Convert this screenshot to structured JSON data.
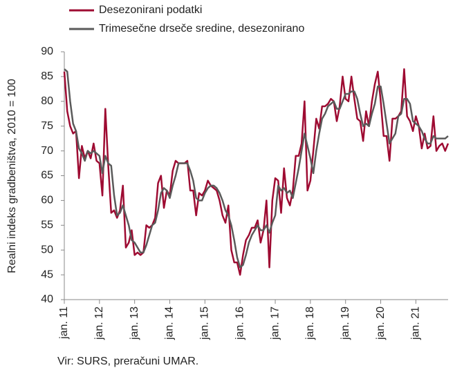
{
  "chart_data": {
    "type": "line",
    "y_label": "Realni indeks gradbeništva, 2010 = 100",
    "source": "Vir: SURS, preračuni UMAR.",
    "categories": [
      "jan. 11",
      null,
      null,
      null,
      null,
      null,
      null,
      null,
      null,
      null,
      null,
      null,
      "jan. 12",
      null,
      null,
      null,
      null,
      null,
      null,
      null,
      null,
      null,
      null,
      null,
      "jan. 13",
      null,
      null,
      null,
      null,
      null,
      null,
      null,
      null,
      null,
      null,
      null,
      "jan. 14",
      null,
      null,
      null,
      null,
      null,
      null,
      null,
      null,
      null,
      null,
      null,
      "jan. 15",
      null,
      null,
      null,
      null,
      null,
      null,
      null,
      null,
      null,
      null,
      null,
      "jan. 16",
      null,
      null,
      null,
      null,
      null,
      null,
      null,
      null,
      null,
      null,
      null,
      "jan. 17",
      null,
      null,
      null,
      null,
      null,
      null,
      null,
      null,
      null,
      null,
      null,
      "jan. 18",
      null,
      null,
      null,
      null,
      null,
      null,
      null,
      null,
      null,
      null,
      null,
      "jan. 19",
      null,
      null,
      null,
      null,
      null,
      null,
      null,
      null,
      null,
      null,
      null,
      "jan. 20",
      null,
      null,
      null,
      null,
      null,
      null,
      null,
      null,
      null,
      null,
      null,
      "jan. 21",
      null,
      null,
      null,
      null,
      null,
      null,
      null,
      null,
      null,
      null,
      null
    ],
    "series": [
      {
        "name": "Desezonirani podatki",
        "color": "#9e0b32",
        "values": [
          86,
          78,
          75,
          73.5,
          74,
          64.5,
          71,
          68.5,
          70,
          68.5,
          71.5,
          68,
          67.5,
          61,
          78.5,
          67,
          57.5,
          58,
          56.5,
          58,
          63,
          50.5,
          51.5,
          54,
          49,
          49.5,
          49,
          49.5,
          55,
          54.5,
          55,
          56.5,
          63.5,
          65,
          58.5,
          62,
          61,
          66,
          68,
          67.5,
          67.5,
          67.5,
          68,
          62,
          62,
          57,
          61.5,
          61,
          62,
          64,
          63,
          62.5,
          62,
          60,
          57,
          55.5,
          59,
          50,
          47.5,
          47.5,
          45,
          49,
          52,
          53,
          54.5,
          54.5,
          56,
          51.5,
          54,
          60,
          46.5,
          60,
          64.5,
          64,
          57.5,
          66.5,
          60.5,
          59,
          62,
          69,
          69,
          71.5,
          80,
          62,
          64,
          70,
          76.5,
          74.5,
          79,
          79,
          79.5,
          80.5,
          80,
          76,
          79,
          85,
          80.5,
          80,
          85,
          80.5,
          76.5,
          76,
          72,
          78,
          75,
          80,
          83.5,
          86,
          80,
          73,
          73,
          68,
          76.5,
          76.5,
          77,
          78,
          86.5,
          77,
          76,
          74,
          77,
          75,
          70.5,
          73.5,
          70.5,
          71,
          77,
          70,
          71,
          71.5,
          70,
          71.5
        ]
      },
      {
        "name": "Trimesečne drseče sredine, desezonirano",
        "color": "#5a5a5a",
        "values": [
          86.5,
          86,
          80,
          75.5,
          74,
          70.5,
          69.5,
          68,
          70,
          69.5,
          70,
          69.5,
          69,
          65.5,
          69,
          67.5,
          67,
          61,
          57,
          57.5,
          59,
          57,
          55,
          52,
          51.5,
          50.5,
          49.5,
          49.5,
          51,
          53,
          55,
          55.5,
          58,
          61.5,
          62.5,
          62,
          60.5,
          63,
          65,
          67.5,
          67.5,
          67.5,
          67.5,
          66,
          64,
          60.5,
          60,
          60,
          61.5,
          62.5,
          63,
          63,
          62.5,
          61.5,
          60,
          58,
          57,
          55,
          52,
          48.5,
          46.5,
          47,
          49,
          51.5,
          53,
          54,
          55,
          54,
          54,
          55,
          53.5,
          55.5,
          57,
          63,
          62,
          62.5,
          61.5,
          62,
          60.5,
          63.5,
          66.5,
          70,
          73.5,
          71,
          68.5,
          65.5,
          70,
          73.5,
          76.5,
          77.5,
          79,
          79.5,
          80,
          78.5,
          78.5,
          80,
          81.5,
          81.5,
          82,
          82,
          80.5,
          77.5,
          75,
          75.5,
          75,
          77.5,
          79.5,
          83,
          83,
          79.5,
          75.5,
          71.5,
          72.5,
          73.5,
          77,
          77.5,
          80.5,
          80.5,
          79.5,
          76,
          75.5,
          75,
          74,
          72.5,
          71.5,
          71.5,
          73,
          72.5,
          72.5,
          72.5,
          72.5,
          73
        ]
      }
    ],
    "ylim": [
      40,
      90
    ],
    "yticks": [
      40,
      45,
      50,
      55,
      60,
      65,
      70,
      75,
      80,
      85,
      90
    ]
  }
}
